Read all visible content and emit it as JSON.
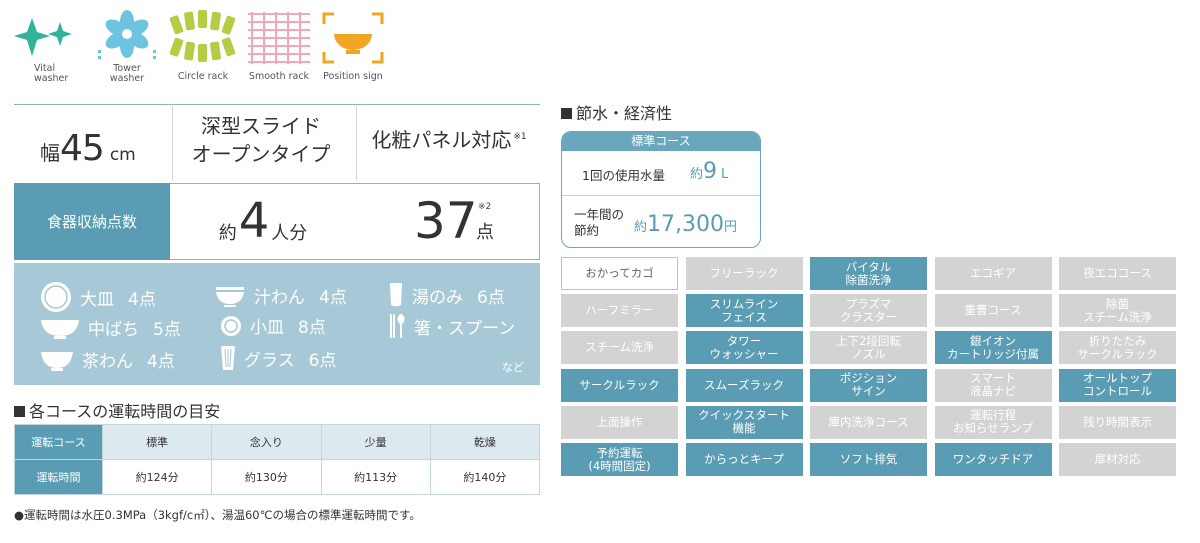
{
  "icons": [
    {
      "name": "Vital washer",
      "lines": [
        "Vital",
        "washer"
      ],
      "icon": "sparkle-icon"
    },
    {
      "name": "Tower washer",
      "lines": [
        "Tower",
        "washer"
      ],
      "icon": "tower-washer-icon"
    },
    {
      "name": "Circle rack",
      "lines": [
        "Circle rack"
      ],
      "icon": "circle-rack-icon"
    },
    {
      "name": "Smooth rack",
      "lines": [
        "Smooth rack"
      ],
      "icon": "smooth-rack-icon"
    },
    {
      "name": "Position sign",
      "lines": [
        "Position sign"
      ],
      "icon": "position-sign-icon"
    }
  ],
  "spec": {
    "width_label": "幅",
    "width_value": "45",
    "width_unit": "cm",
    "type_line1": "深型スライド",
    "type_line2": "オープンタイプ",
    "panel": "化粧パネル対応",
    "panel_note": "※1"
  },
  "capacity": {
    "label": "食器収納点数",
    "persons_prefix": "約",
    "persons_value": "4",
    "persons_unit": "人分",
    "pieces_value": "37",
    "pieces_note": "※2",
    "pieces_unit": "点"
  },
  "dishes": [
    {
      "name": "大皿",
      "count": "4点",
      "icon": "large-plate-icon"
    },
    {
      "name": "汁わん",
      "count": "4点",
      "icon": "soup-bowl-icon"
    },
    {
      "name": "湯のみ",
      "count": "6点",
      "icon": "teacup-icon"
    },
    {
      "name": "中ばち",
      "count": "5点",
      "icon": "medium-bowl-icon"
    },
    {
      "name": "小皿",
      "count": "8点",
      "icon": "small-plate-icon"
    },
    {
      "name": "箸・スプーン",
      "count": "",
      "icon": "chopsticks-spoon-icon"
    },
    {
      "name": "茶わん",
      "count": "4点",
      "icon": "rice-bowl-icon"
    },
    {
      "name": "グラス",
      "count": "6点",
      "icon": "glass-icon"
    }
  ],
  "dishes_more": "など",
  "course_time": {
    "title": "各コースの運転時間の目安",
    "row_header_course": "運転コース",
    "row_header_time": "運転時間",
    "courses": [
      "標準",
      "念入り",
      "少量",
      "乾燥"
    ],
    "times": [
      "約124分",
      "約130分",
      "約113分",
      "約140分"
    ],
    "note": "●運転時間は水圧0.3MPa（3kgf/c㎡）、湯温60℃の場合の標準運転時間です。"
  },
  "eco": {
    "title": "節水・経済性",
    "course": "標準コース",
    "water_label": "1回の使用水量",
    "water_prefix": "約",
    "water_value": "9",
    "water_unit": "L",
    "saving_label_1": "一年間の",
    "saving_label_2": "節約",
    "saving_prefix": "約",
    "saving_value": "17,300",
    "saving_unit": "円"
  },
  "features": [
    {
      "label": "おかってカゴ",
      "state": "outline"
    },
    {
      "label": "フリーラック",
      "state": "off"
    },
    {
      "label": "バイタル\n除菌洗浄",
      "state": "on"
    },
    {
      "label": "エコギア",
      "state": "off"
    },
    {
      "label": "夜エココース",
      "state": "off"
    },
    {
      "label": "ハーフミラー",
      "state": "off"
    },
    {
      "label": "スリムライン\nフェイス",
      "state": "on"
    },
    {
      "label": "プラズマ\nクラスター",
      "state": "off"
    },
    {
      "label": "重曹コース",
      "state": "off"
    },
    {
      "label": "除菌\nスチーム洗浄",
      "state": "off"
    },
    {
      "label": "スチーム洗浄",
      "state": "off"
    },
    {
      "label": "タワー\nウォッシャー",
      "state": "on"
    },
    {
      "label": "上下2段回転\nノズル",
      "state": "off"
    },
    {
      "label": "銀イオン\nカートリッジ付属",
      "state": "on"
    },
    {
      "label": "折りたたみ\nサークルラック",
      "state": "off"
    },
    {
      "label": "サークルラック",
      "state": "on"
    },
    {
      "label": "スムーズラック",
      "state": "on"
    },
    {
      "label": "ポジション\nサイン",
      "state": "on"
    },
    {
      "label": "スマート\n液晶ナビ",
      "state": "off"
    },
    {
      "label": "オールトップ\nコントロール",
      "state": "on"
    },
    {
      "label": "上面操作",
      "state": "off"
    },
    {
      "label": "クイックスタート\n機能",
      "state": "on"
    },
    {
      "label": "庫内洗浄コース",
      "state": "off"
    },
    {
      "label": "運転行程\nお知らせランプ",
      "state": "off"
    },
    {
      "label": "残り時間表示",
      "state": "off"
    },
    {
      "label": "予約運転\n(4時間固定)",
      "state": "on"
    },
    {
      "label": "からっとキープ",
      "state": "on"
    },
    {
      "label": "ソフト排気",
      "state": "on"
    },
    {
      "label": "ワンタッチドア",
      "state": "on"
    },
    {
      "label": "扉材対応",
      "state": "off"
    }
  ],
  "colors": {
    "accent": "#5a9cb3",
    "light_accent": "#a7c9d7",
    "disabled": "#d3d3d3",
    "icon_green": "#2fb39a",
    "icon_yellow_green": "#b5cc45",
    "icon_pink": "#f2a7b8",
    "icon_orange": "#f0a623"
  }
}
